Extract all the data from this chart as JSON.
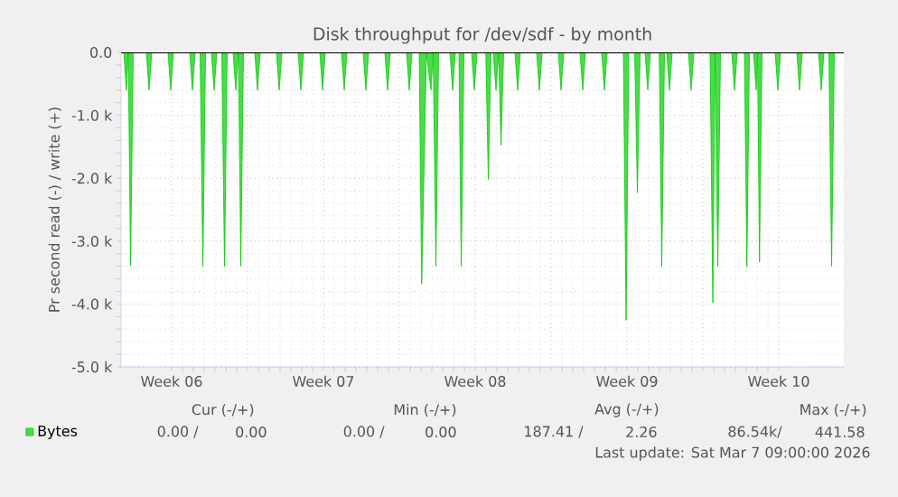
{
  "chart_data": {
    "type": "area",
    "title": "Disk throughput for /dev/sdf - by month",
    "ylabel": "Pr second read (-) / write (+)",
    "xlim": [
      "2026-02-02T04:00",
      "2026-03-07T12:00"
    ],
    "xticks": [
      {
        "value": "2026-02-04T12:00",
        "label": "Week 06"
      },
      {
        "value": "2026-02-08T00:00",
        "label": null
      },
      {
        "value": "2026-02-11T12:00",
        "label": "Week 07"
      },
      {
        "value": "2026-02-15T00:00",
        "label": null
      },
      {
        "value": "2026-02-18T12:00",
        "label": "Week 08"
      },
      {
        "value": "2026-02-22T00:00",
        "label": null
      },
      {
        "value": "2026-02-25T12:00",
        "label": "Week 09"
      },
      {
        "value": "2026-03-01T00:00",
        "label": null
      },
      {
        "value": "2026-03-04T12:00",
        "label": "Week 10"
      }
    ],
    "ylim": [
      -5000,
      0
    ],
    "yticks": [
      {
        "value": -5000,
        "label": "-5.0 k"
      },
      {
        "value": -4000,
        "label": "-4.0 k"
      },
      {
        "value": -3000,
        "label": "-3.0 k"
      },
      {
        "value": -2000,
        "label": "-2.0 k"
      },
      {
        "value": -1000,
        "label": "-1.0 k"
      },
      {
        "value": 0,
        "label": "0.0"
      }
    ],
    "grid": true,
    "legend": "bottom left",
    "ref_lines": [
      {
        "axis": "y",
        "value": 0,
        "color": "#000000"
      }
    ],
    "series": [
      {
        "name": "Bytes",
        "color": "#00cc00",
        "x": [
          "2026-02-02T07:00",
          "2026-02-02T10:00",
          "2026-02-02T12:00",
          "2026-02-02T14:30",
          "2026-02-02T17:30",
          "2026-02-03T08:00",
          "2026-02-03T11:00",
          "2026-02-03T14:00",
          "2026-02-04T08:00",
          "2026-02-04T11:00",
          "2026-02-04T14:00",
          "2026-02-05T08:00",
          "2026-02-05T11:00",
          "2026-02-05T14:00",
          "2026-02-05T19:30",
          "2026-02-05T22:30",
          "2026-02-06T01:30",
          "2026-02-06T08:00",
          "2026-02-06T11:00",
          "2026-02-06T14:00",
          "2026-02-06T19:30",
          "2026-02-06T22:30",
          "2026-02-07T01:30",
          "2026-02-07T08:00",
          "2026-02-07T11:00",
          "2026-02-07T14:00",
          "2026-02-07T16:30",
          "2026-02-07T19:30",
          "2026-02-08T08:00",
          "2026-02-08T11:00",
          "2026-02-08T14:00",
          "2026-02-09T08:00",
          "2026-02-09T11:00",
          "2026-02-09T14:00",
          "2026-02-10T08:00",
          "2026-02-10T11:00",
          "2026-02-10T14:00",
          "2026-02-11T08:00",
          "2026-02-11T11:00",
          "2026-02-11T14:00",
          "2026-02-12T08:00",
          "2026-02-12T11:00",
          "2026-02-12T14:00",
          "2026-02-13T08:00",
          "2026-02-13T11:00",
          "2026-02-13T14:00",
          "2026-02-14T08:00",
          "2026-02-14T11:00",
          "2026-02-14T14:00",
          "2026-02-15T08:00",
          "2026-02-15T11:00",
          "2026-02-15T14:00",
          "2026-02-15T22:00",
          "2026-02-16T00:45",
          "2026-02-16T06:00",
          "2026-02-16T11:00",
          "2026-02-16T13:30",
          "2026-02-16T16:30",
          "2026-02-16T19:30",
          "2026-02-17T08:00",
          "2026-02-17T11:00",
          "2026-02-17T14:00",
          "2026-02-17T18:00",
          "2026-02-17T20:30",
          "2026-02-17T23:30",
          "2026-02-18T08:00",
          "2026-02-18T11:00",
          "2026-02-18T14:00",
          "2026-02-18T23:45",
          "2026-02-19T02:30",
          "2026-02-19T05:30",
          "2026-02-19T08:00",
          "2026-02-19T11:00",
          "2026-02-19T14:00",
          "2026-02-19T16:30",
          "2026-02-19T19:30",
          "2026-02-20T08:00",
          "2026-02-20T11:00",
          "2026-02-20T14:00",
          "2026-02-21T08:00",
          "2026-02-21T11:00",
          "2026-02-21T14:00",
          "2026-02-22T08:00",
          "2026-02-22T11:00",
          "2026-02-22T14:00",
          "2026-02-23T08:00",
          "2026-02-23T11:00",
          "2026-02-23T14:00",
          "2026-02-24T08:00",
          "2026-02-24T11:00",
          "2026-02-24T14:00",
          "2026-02-25T08:00",
          "2026-02-25T11:00",
          "2026-02-25T14:00",
          "2026-02-25T20:30",
          "2026-02-25T23:30",
          "2026-02-26T02:30",
          "2026-02-26T08:00",
          "2026-02-26T11:00",
          "2026-02-26T14:00",
          "2026-02-26T23:45",
          "2026-02-27T02:30",
          "2026-02-27T05:30",
          "2026-02-27T08:00",
          "2026-02-27T11:00",
          "2026-02-27T14:00",
          "2026-02-28T08:00",
          "2026-02-28T11:00",
          "2026-02-28T14:00",
          "2026-03-01T08:00",
          "2026-03-01T11:00",
          "2026-03-01T13:30",
          "2026-03-01T16:30",
          "2026-03-01T19:30",
          "2026-03-02T08:00",
          "2026-03-02T11:00",
          "2026-03-02T14:00",
          "2026-03-02T22:00",
          "2026-03-03T00:45",
          "2026-03-03T03:30",
          "2026-03-03T08:00",
          "2026-03-03T11:00",
          "2026-03-03T12:30",
          "2026-03-03T14:40",
          "2026-03-03T17:30",
          "2026-03-04T08:00",
          "2026-03-04T11:00",
          "2026-03-04T14:00",
          "2026-03-05T08:00",
          "2026-03-05T11:00",
          "2026-03-05T14:00",
          "2026-03-06T08:00",
          "2026-03-06T11:00",
          "2026-03-06T14:00",
          "2026-03-06T19:30",
          "2026-03-06T22:30",
          "2026-03-07T01:30",
          "2026-03-07T07:00"
        ],
        "values": [
          0,
          -600,
          0,
          -3390,
          0,
          0,
          -600,
          0,
          0,
          -600,
          0,
          0,
          -600,
          0,
          0,
          -3400,
          0,
          0,
          -600,
          0,
          0,
          -3400,
          0,
          0,
          -600,
          0,
          -3400,
          0,
          0,
          -600,
          0,
          0,
          -600,
          0,
          0,
          -600,
          0,
          0,
          -600,
          0,
          0,
          -600,
          0,
          0,
          -600,
          0,
          0,
          -600,
          0,
          0,
          -600,
          0,
          0,
          -3680,
          0,
          -600,
          0,
          -3400,
          0,
          0,
          -600,
          0,
          0,
          -3400,
          0,
          0,
          -600,
          0,
          0,
          -2020,
          0,
          0,
          -600,
          0,
          -1480,
          0,
          0,
          -600,
          0,
          0,
          -600,
          0,
          0,
          -600,
          0,
          0,
          -600,
          0,
          0,
          -600,
          0,
          0,
          -4260,
          0,
          0,
          -2230,
          0,
          0,
          -600,
          0,
          0,
          -3400,
          0,
          0,
          -600,
          0,
          0,
          -600,
          0,
          0,
          -3980,
          0,
          -3400,
          0,
          0,
          -600,
          0,
          0,
          -3400,
          0,
          0,
          -600,
          0,
          -3330,
          0,
          0,
          -600,
          0,
          0,
          -600,
          0,
          0,
          -600,
          0,
          0,
          -3400,
          0,
          0
        ]
      }
    ],
    "annotations": [
      "Cur (-/+)",
      "Min (-/+)",
      "Avg (-/+)",
      "Max (-/+)",
      "0.00 /",
      "0.00",
      "0.00 /",
      "0.00",
      "187.41 /",
      "2.26",
      "86.54k/",
      "441.58",
      "Last update: Sat Mar  7 09:00:00 2026"
    ]
  }
}
